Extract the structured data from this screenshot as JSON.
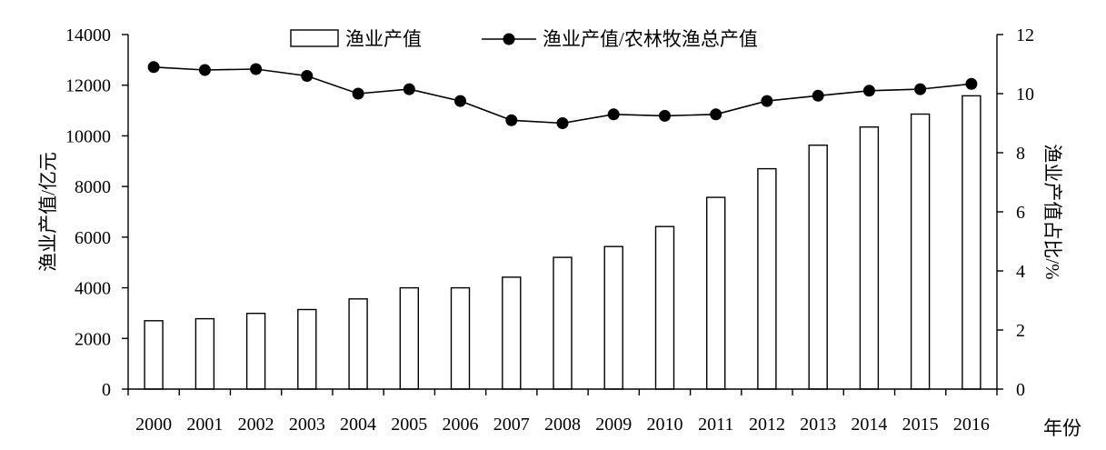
{
  "chart_data": {
    "type": "bar",
    "categories": [
      "2000",
      "2001",
      "2002",
      "2003",
      "2004",
      "2005",
      "2006",
      "2007",
      "2008",
      "2009",
      "2010",
      "2011",
      "2012",
      "2013",
      "2014",
      "2015",
      "2016"
    ],
    "series": [
      {
        "name": "渔业产值",
        "type": "bar",
        "axis": "left",
        "values": [
          2700,
          2780,
          2990,
          3140,
          3560,
          4000,
          4000,
          4420,
          5200,
          5630,
          6420,
          7570,
          8700,
          9630,
          10350,
          10860,
          11580
        ]
      },
      {
        "name": "渔业产值/农林牧渔总产值",
        "type": "line",
        "axis": "right",
        "marker": "filled-circle",
        "values": [
          10.9,
          10.8,
          10.83,
          10.6,
          10.0,
          10.15,
          9.75,
          9.1,
          9.0,
          9.3,
          9.25,
          9.3,
          9.75,
          9.93,
          10.1,
          10.15,
          10.33
        ]
      }
    ],
    "ylabel_left": "渔业产值/亿元",
    "ylabel_right": "渔业产值占比/%",
    "xlabel": "年份",
    "ylim_left": [
      0,
      14000
    ],
    "ylim_right": [
      0,
      12
    ],
    "yticks_left": [
      0,
      2000,
      4000,
      6000,
      8000,
      10000,
      12000,
      14000
    ],
    "yticks_right": [
      0,
      2,
      4,
      6,
      8,
      10,
      12
    ],
    "grid": false,
    "legend_position": "top-center",
    "colors": {
      "bar_fill": "#ffffff",
      "stroke": "#000000",
      "marker": "#000000"
    }
  }
}
